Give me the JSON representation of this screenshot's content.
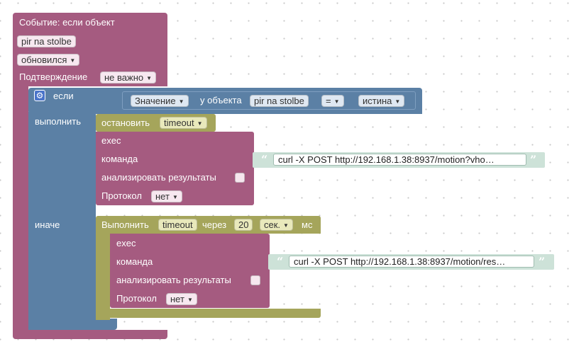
{
  "colors": {
    "event": "#a55b80",
    "logic": "#5b80a5",
    "timer": "#a5a55b",
    "string": "#cde2d8",
    "dropdown_timer": "#e9e9bb"
  },
  "event_block": {
    "title": "Событие: если объект",
    "object": "pir na stolbe",
    "trigger": "обновился",
    "ack_label": "Подтверждение",
    "ack_value": "не важно"
  },
  "if_block": {
    "gear_icon": "gear-icon",
    "if_label": "если",
    "do_label": "выполнить",
    "else_label": "иначе",
    "condition": {
      "value_label": "Значение",
      "of_object": "у объекта",
      "object": "pir na stolbe",
      "operator": "=",
      "compare": "истина"
    }
  },
  "stop_block": {
    "label": "остановить",
    "timer": "timeout"
  },
  "exec1": {
    "title": "exec",
    "command_label": "команда",
    "command": "curl -X POST http://192.168.1.38:8937/motion?vho…",
    "analyze_label": "анализировать результаты",
    "protocol_label": "Протокол",
    "protocol_value": "нет"
  },
  "delay_block": {
    "label": "Выполнить",
    "timer": "timeout",
    "after": "через",
    "amount": "20",
    "unit": "сек.",
    "suffix": "мс"
  },
  "exec2": {
    "title": "exec",
    "command_label": "команда",
    "command": "curl -X POST http://192.168.1.38:8937/motion/res…",
    "analyze_label": "анализировать результаты",
    "protocol_label": "Протокол",
    "protocol_value": "нет"
  },
  "quote_open": "“",
  "quote_close": "”",
  "dropdown_arrow": "▼"
}
